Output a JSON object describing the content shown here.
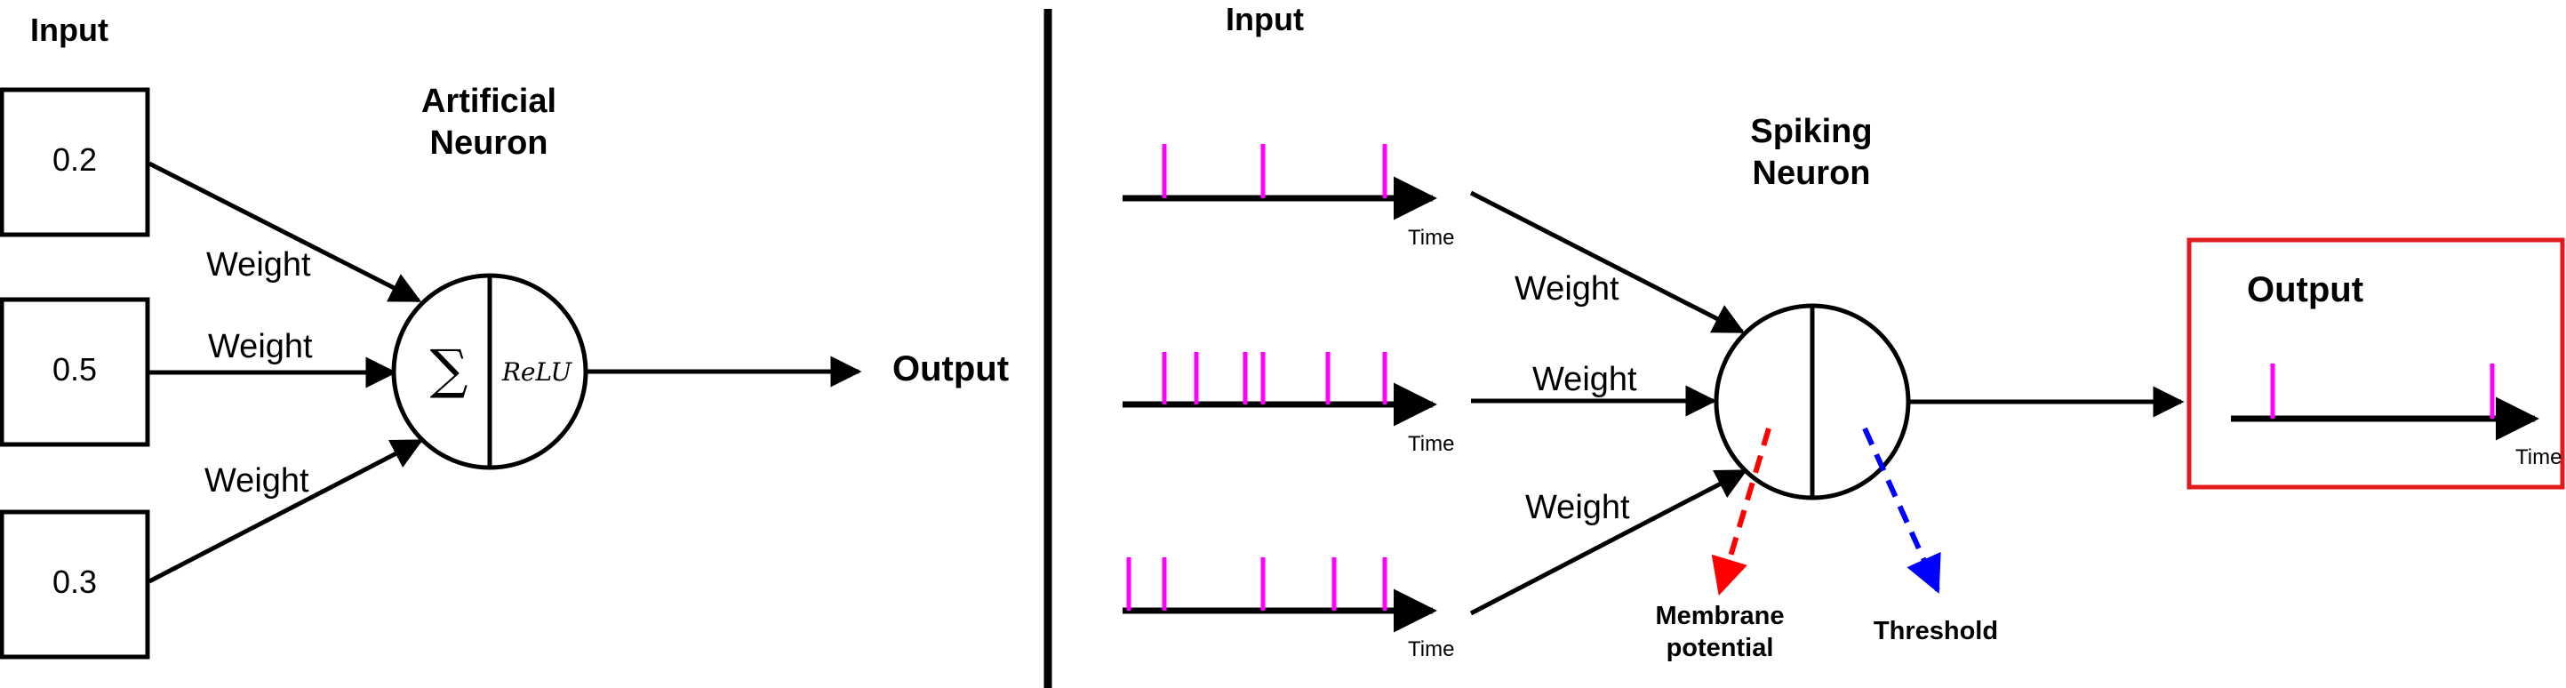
{
  "left": {
    "input_header": "Input",
    "neuron_title_line1": "Artificial",
    "neuron_title_line2": "Neuron",
    "inputs": [
      "0.2",
      "0.5",
      "0.3"
    ],
    "weight_labels": [
      "Weight",
      "Weight",
      "Weight"
    ],
    "sum_symbol": "∑",
    "activation_label": "ReLU",
    "output_label": "Output"
  },
  "right": {
    "input_header": "Input",
    "neuron_title_line1": "Spiking",
    "neuron_title_line2": "Neuron",
    "time_labels": [
      "Time",
      "Time",
      "Time"
    ],
    "weight_labels": [
      "Weight",
      "Weight",
      "Weight"
    ],
    "spike_trains": [
      3,
      6,
      5
    ],
    "output_header": "Output",
    "output_time_label": "Time",
    "output_spikes": 2,
    "membrane_label_line1": "Membrane",
    "membrane_label_line2": "potential",
    "threshold_label": "Threshold"
  },
  "colors": {
    "spike": "#ff00ff",
    "membrane": "#ff0000",
    "threshold": "#0000ff",
    "output_box": "#e31a1c",
    "line": "#000000"
  }
}
